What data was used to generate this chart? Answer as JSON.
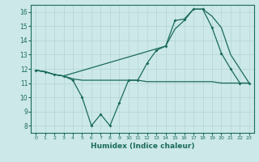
{
  "title": "",
  "xlabel": "Humidex (Indice chaleur)",
  "xlim": [
    -0.5,
    23.5
  ],
  "ylim": [
    7.5,
    16.5
  ],
  "yticks": [
    8,
    9,
    10,
    11,
    12,
    13,
    14,
    15,
    16
  ],
  "xticks": [
    0,
    1,
    2,
    3,
    4,
    5,
    6,
    7,
    8,
    9,
    10,
    11,
    12,
    13,
    14,
    15,
    16,
    17,
    18,
    19,
    20,
    21,
    22,
    23
  ],
  "background_color": "#cce8e8",
  "grid_color": "#aacccc",
  "line_color": "#1a6b5a",
  "line1_x": [
    0,
    1,
    2,
    3,
    4,
    5,
    6,
    7,
    8,
    9,
    10,
    11,
    12,
    13,
    14,
    15,
    16,
    17,
    18,
    19,
    20,
    21,
    22,
    23
  ],
  "line1_y": [
    11.9,
    11.8,
    11.6,
    11.5,
    11.2,
    10.0,
    8.0,
    8.8,
    8.0,
    9.6,
    11.2,
    11.2,
    12.4,
    13.3,
    13.6,
    15.4,
    15.5,
    16.2,
    16.2,
    14.9,
    13.1,
    12.0,
    11.0,
    11.0
  ],
  "line2_x": [
    0,
    1,
    2,
    3,
    4,
    5,
    6,
    7,
    8,
    9,
    10,
    11,
    12,
    13,
    14,
    15,
    16,
    17,
    18,
    19,
    20,
    21,
    22,
    23
  ],
  "line2_y": [
    11.9,
    11.8,
    11.6,
    11.5,
    11.3,
    11.2,
    11.2,
    11.2,
    11.2,
    11.2,
    11.2,
    11.2,
    11.1,
    11.1,
    11.1,
    11.1,
    11.1,
    11.1,
    11.1,
    11.1,
    11.0,
    11.0,
    11.0,
    11.0
  ],
  "line3_x": [
    0,
    1,
    2,
    3,
    14,
    15,
    16,
    17,
    18,
    19,
    20,
    21,
    22,
    23
  ],
  "line3_y": [
    11.9,
    11.8,
    11.6,
    11.5,
    13.6,
    14.8,
    15.4,
    16.2,
    16.2,
    15.7,
    14.9,
    13.0,
    12.0,
    11.0
  ]
}
